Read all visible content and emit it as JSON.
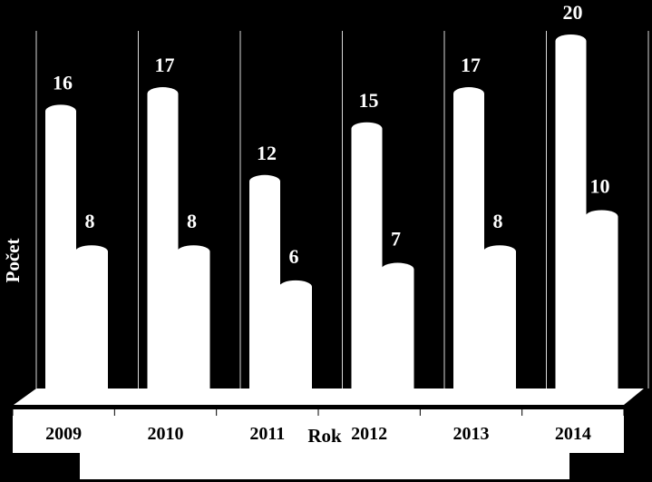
{
  "chart_data": {
    "type": "bar",
    "categories": [
      "2009",
      "2010",
      "2011",
      "2012",
      "2013",
      "2014"
    ],
    "series": [
      {
        "values": [
          16,
          17,
          12,
          15,
          17,
          20
        ]
      },
      {
        "values": [
          8,
          8,
          6,
          7,
          8,
          10
        ]
      }
    ],
    "xlabel": "Rok",
    "ylabel": "Počet",
    "ylim": [
      0,
      20
    ],
    "grid": "vertical",
    "legend": "none",
    "colors": {
      "background": "#000000",
      "bars": "#ffffff",
      "text_on_dark": "#ffffff",
      "text_on_light": "#000000"
    }
  }
}
